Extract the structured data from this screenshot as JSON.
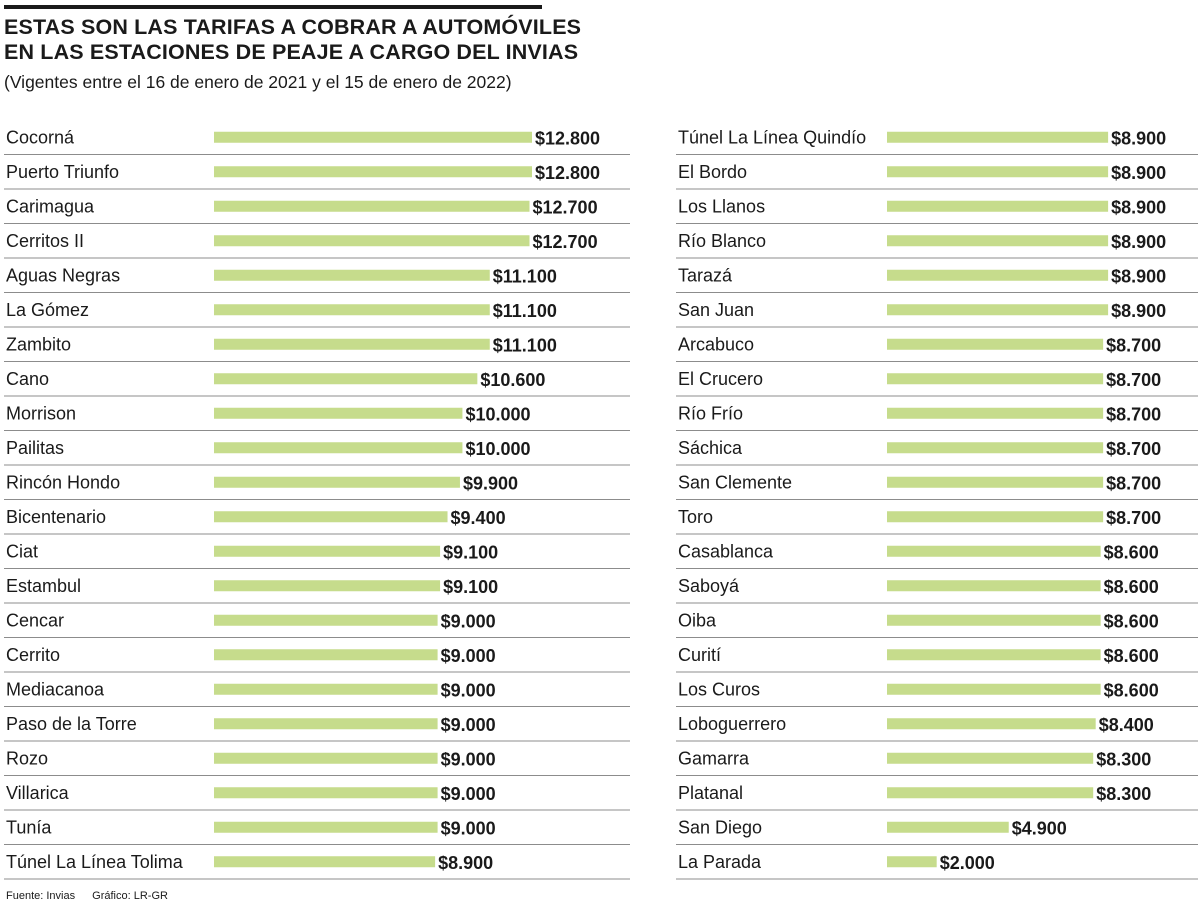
{
  "header": {
    "title_line1": "ESTAS SON LAS TARIFAS A COBRAR A AUTOMÓVILES",
    "title_line2": "EN LAS ESTACIONES DE PEAJE A CARGO DEL INVIAS",
    "subtitle": "(Vigentes entre el 16 de enero de 2021 y el 15 de enero de 2022)"
  },
  "footer": {
    "source": "Fuente: Invias",
    "graphic": "Gráfico: LR-GR"
  },
  "colors": {
    "bar": "#c6dc8c",
    "text": "#1a1a1a",
    "separator": "#8c8c8c"
  },
  "chart_data": {
    "type": "bar",
    "orientation": "horizontal",
    "title": "ESTAS SON LAS TARIFAS A COBRAR A AUTOMÓVILES EN LAS ESTACIONES DE PEAJE A CARGO DEL INVIAS",
    "subtitle": "(Vigentes entre el 16 de enero de 2021 y el 15 de enero de 2022)",
    "xlabel": "",
    "ylabel": "",
    "xlim": [
      0,
      12800
    ],
    "grid": false,
    "columns": [
      {
        "items": [
          {
            "name": "Cocorná",
            "value": 12800,
            "label": "$12.800"
          },
          {
            "name": "Puerto Triunfo",
            "value": 12800,
            "label": "$12.800"
          },
          {
            "name": "Carimagua",
            "value": 12700,
            "label": "$12.700"
          },
          {
            "name": "Cerritos II",
            "value": 12700,
            "label": "$12.700"
          },
          {
            "name": "Aguas Negras",
            "value": 11100,
            "label": "$11.100"
          },
          {
            "name": "La Gómez",
            "value": 11100,
            "label": "$11.100"
          },
          {
            "name": "Zambito",
            "value": 11100,
            "label": "$11.100"
          },
          {
            "name": "Cano",
            "value": 10600,
            "label": "$10.600"
          },
          {
            "name": "Morrison",
            "value": 10000,
            "label": "$10.000"
          },
          {
            "name": "Pailitas",
            "value": 10000,
            "label": "$10.000"
          },
          {
            "name": "Rincón Hondo",
            "value": 9900,
            "label": "$9.900"
          },
          {
            "name": "Bicentenario",
            "value": 9400,
            "label": "$9.400"
          },
          {
            "name": "Ciat",
            "value": 9100,
            "label": "$9.100"
          },
          {
            "name": "Estambul",
            "value": 9100,
            "label": "$9.100"
          },
          {
            "name": "Cencar",
            "value": 9000,
            "label": "$9.000"
          },
          {
            "name": "Cerrito",
            "value": 9000,
            "label": "$9.000"
          },
          {
            "name": "Mediacanoa",
            "value": 9000,
            "label": "$9.000"
          },
          {
            "name": "Paso de la Torre",
            "value": 9000,
            "label": "$9.000"
          },
          {
            "name": "Rozo",
            "value": 9000,
            "label": "$9.000"
          },
          {
            "name": "Villarica",
            "value": 9000,
            "label": "$9.000"
          },
          {
            "name": "Tunía",
            "value": 9000,
            "label": "$9.000"
          },
          {
            "name": "Túnel La Línea Tolima",
            "value": 8900,
            "label": "$8.900"
          }
        ]
      },
      {
        "items": [
          {
            "name": "Túnel La Línea Quindío",
            "value": 8900,
            "label": "$8.900"
          },
          {
            "name": "El Bordo",
            "value": 8900,
            "label": "$8.900"
          },
          {
            "name": "Los Llanos",
            "value": 8900,
            "label": "$8.900"
          },
          {
            "name": "Río Blanco",
            "value": 8900,
            "label": "$8.900"
          },
          {
            "name": "Tarazá",
            "value": 8900,
            "label": "$8.900"
          },
          {
            "name": "San Juan",
            "value": 8900,
            "label": "$8.900"
          },
          {
            "name": "Arcabuco",
            "value": 8700,
            "label": "$8.700"
          },
          {
            "name": "El Crucero",
            "value": 8700,
            "label": "$8.700"
          },
          {
            "name": "Río Frío",
            "value": 8700,
            "label": "$8.700"
          },
          {
            "name": "Sáchica",
            "value": 8700,
            "label": "$8.700"
          },
          {
            "name": "San Clemente",
            "value": 8700,
            "label": "$8.700"
          },
          {
            "name": "Toro",
            "value": 8700,
            "label": "$8.700"
          },
          {
            "name": "Casablanca",
            "value": 8600,
            "label": "$8.600"
          },
          {
            "name": "Saboyá",
            "value": 8600,
            "label": "$8.600"
          },
          {
            "name": "Oiba",
            "value": 8600,
            "label": "$8.600"
          },
          {
            "name": "Curití",
            "value": 8600,
            "label": "$8.600"
          },
          {
            "name": "Los Curos",
            "value": 8600,
            "label": "$8.600"
          },
          {
            "name": "Loboguerrero",
            "value": 8400,
            "label": "$8.400"
          },
          {
            "name": "Gamarra",
            "value": 8300,
            "label": "$8.300"
          },
          {
            "name": "Platanal",
            "value": 8300,
            "label": "$8.300"
          },
          {
            "name": "San Diego",
            "value": 4900,
            "label": "$4.900"
          },
          {
            "name": "La Parada",
            "value": 2000,
            "label": "$2.000"
          }
        ]
      }
    ]
  }
}
